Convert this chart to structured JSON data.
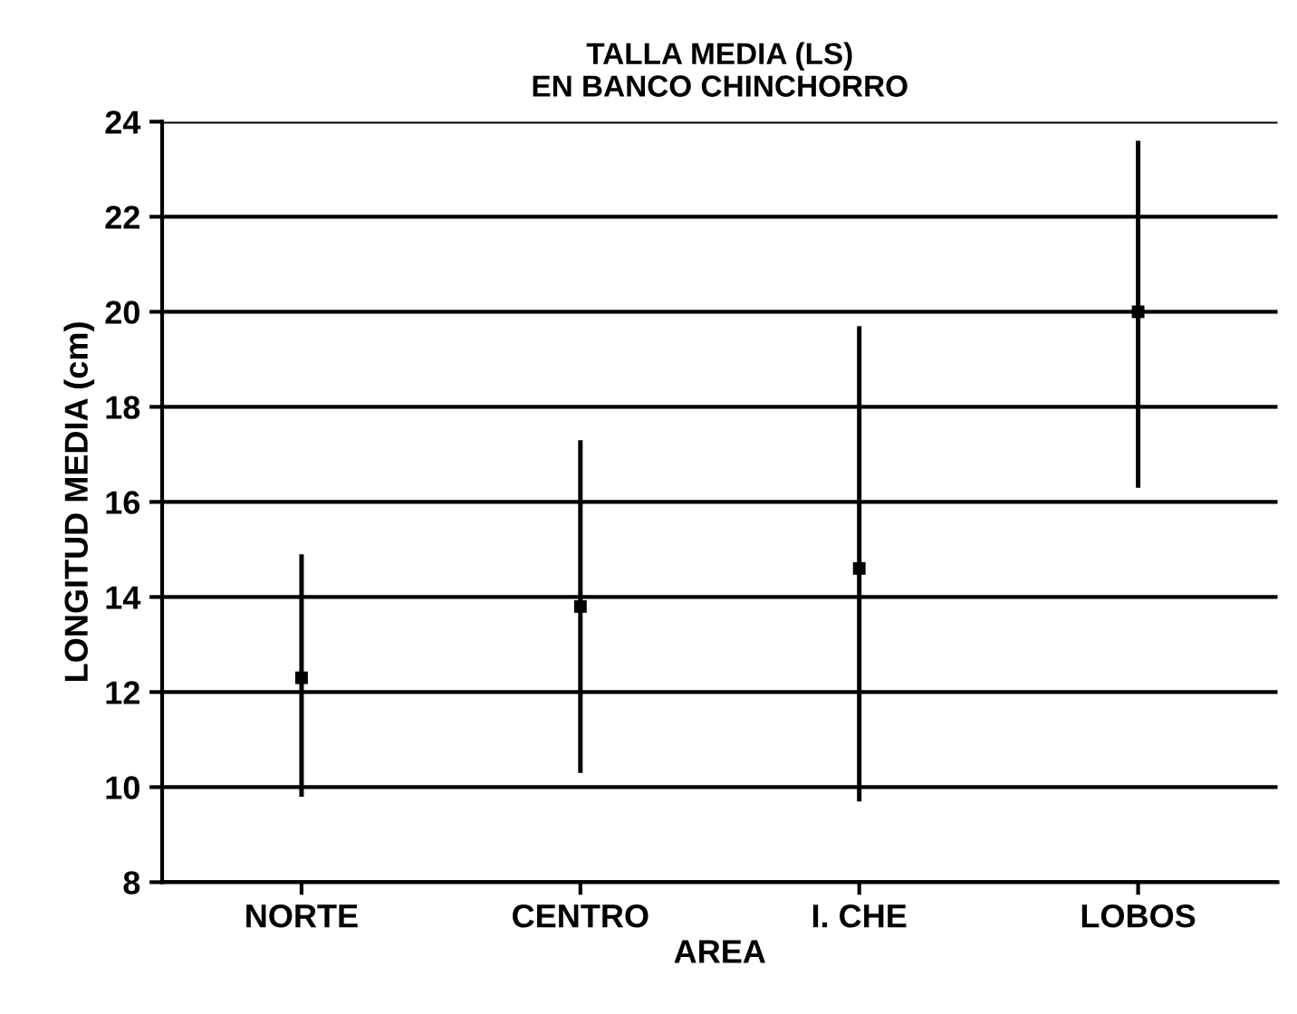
{
  "chart_data": {
    "type": "scatter",
    "title": "TALLA MEDIA (LS)\nEN BANCO CHINCHORRO",
    "xlabel": "AREA",
    "ylabel": "LONGITUD MEDIA (cm)",
    "categories": [
      "NORTE",
      "CENTRO",
      "I. CHE",
      "LOBOS"
    ],
    "series": [
      {
        "color": "#000000",
        "values": [
          12.3,
          13.8,
          14.6,
          20.0
        ],
        "errors": [
          [
            9.8,
            14.9
          ],
          [
            10.3,
            17.3
          ],
          [
            9.7,
            19.7
          ],
          [
            16.3,
            23.6
          ]
        ]
      }
    ],
    "ylim": [
      8,
      24
    ],
    "yticks": [
      8,
      10,
      12,
      14,
      16,
      18,
      20,
      22,
      24
    ],
    "grid": "y",
    "marker": "square"
  }
}
